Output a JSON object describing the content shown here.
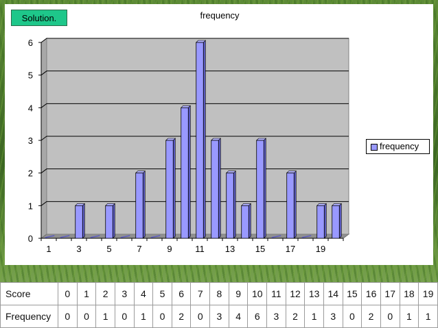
{
  "solution_label": "Solution.",
  "chart_data": {
    "type": "bar",
    "title": "frequency",
    "xlabel": "",
    "ylabel": "",
    "categories": [
      1,
      2,
      3,
      4,
      5,
      6,
      7,
      8,
      9,
      10,
      11,
      12,
      13,
      14,
      15,
      16,
      17,
      18,
      19,
      20
    ],
    "x_tick_labels": [
      "1",
      "3",
      "5",
      "7",
      "9",
      "11",
      "13",
      "15",
      "17",
      "19"
    ],
    "y_tick_labels": [
      "0",
      "1",
      "2",
      "3",
      "4",
      "5",
      "6"
    ],
    "series": [
      {
        "name": "frequency",
        "values": [
          0,
          0,
          1,
          0,
          1,
          0,
          2,
          0,
          3,
          4,
          6,
          3,
          2,
          1,
          3,
          0,
          2,
          0,
          1,
          1
        ]
      }
    ],
    "ylim": [
      0,
      6
    ],
    "grid": true,
    "legend": "right",
    "colors": {
      "bar": "#9999ff",
      "plot_bg": "#c0c0c0"
    }
  },
  "table": {
    "rows": [
      {
        "label": "Score",
        "values": [
          "0",
          "1",
          "2",
          "3",
          "4",
          "5",
          "6",
          "7",
          "8",
          "9",
          "10",
          "11",
          "12",
          "13",
          "14",
          "15",
          "16",
          "17",
          "18",
          "19"
        ]
      },
      {
        "label": "Frequency",
        "values": [
          "0",
          "0",
          "1",
          "0",
          "1",
          "0",
          "2",
          "0",
          "3",
          "4",
          "6",
          "3",
          "2",
          "1",
          "3",
          "0",
          "2",
          "0",
          "1",
          "1"
        ]
      }
    ]
  }
}
